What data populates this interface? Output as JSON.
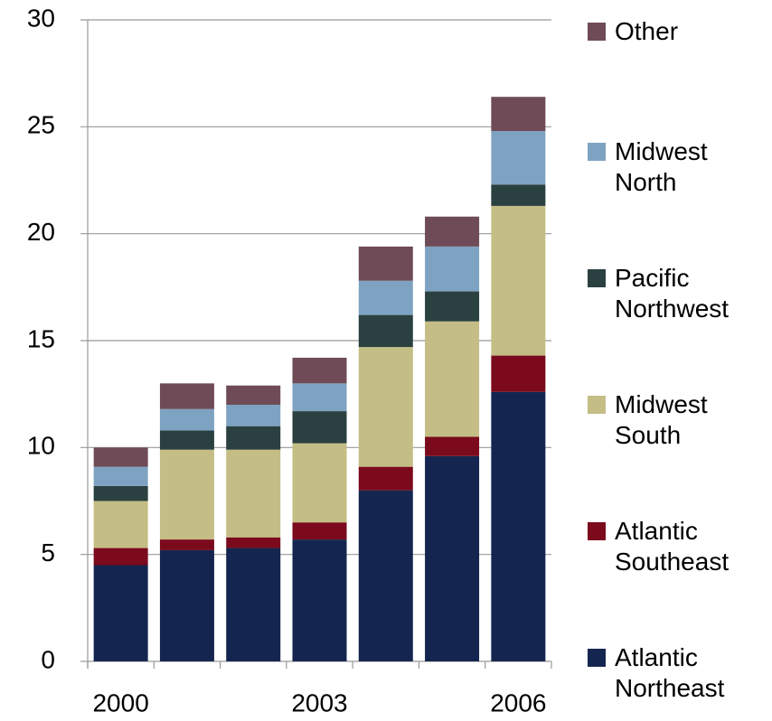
{
  "chart_data": {
    "type": "stacked_bar",
    "categories": [
      "2000",
      null,
      null,
      "2003",
      null,
      null,
      "2006"
    ],
    "series": [
      {
        "name": "Atlantic Northeast",
        "color": "#14264f",
        "values": [
          4.5,
          5.2,
          5.3,
          5.7,
          8.0,
          9.6,
          12.6
        ]
      },
      {
        "name": "Atlantic Southeast",
        "color": "#7a0a1c",
        "values": [
          0.8,
          0.5,
          0.5,
          0.8,
          1.1,
          0.9,
          1.7
        ]
      },
      {
        "name": "Midwest South",
        "color": "#c4bd85",
        "values": [
          2.2,
          4.2,
          4.1,
          3.7,
          5.6,
          5.4,
          7.0
        ]
      },
      {
        "name": "Pacific Northwest",
        "color": "#2b4040",
        "values": [
          0.7,
          0.9,
          1.1,
          1.5,
          1.5,
          1.4,
          1.0
        ]
      },
      {
        "name": "Midwest North",
        "color": "#7ea3c2",
        "values": [
          0.9,
          1.0,
          1.0,
          1.3,
          1.6,
          2.1,
          2.5
        ]
      },
      {
        "name": "Other",
        "color": "#6e4b57",
        "values": [
          0.9,
          1.2,
          0.9,
          1.2,
          1.6,
          1.4,
          1.6
        ]
      }
    ],
    "ylim": [
      0,
      30
    ],
    "yticks": [
      0,
      5,
      10,
      15,
      20,
      25,
      30
    ],
    "grid": true,
    "legend": "right"
  }
}
